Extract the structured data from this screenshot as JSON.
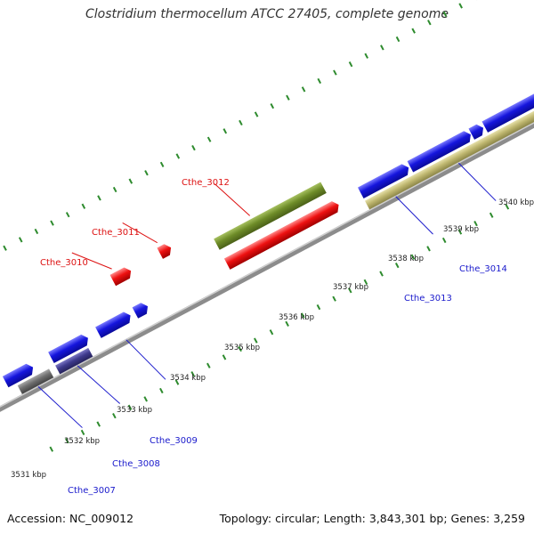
{
  "title": "Clostridium thermocellum ATCC 27405, complete genome",
  "footer": {
    "accession": "Accession: NC_009012",
    "summary": "Topology: circular; Length: 3,843,301 bp; Genes: 3,259"
  },
  "colors": {
    "background": "#ffffff",
    "backbone": "#8c8c8c",
    "tick_green": "#2e8b2e",
    "gene_label_red": "#dd1111",
    "gene_label_blue": "#1a1acc",
    "gene_blue": "#1515dd",
    "gene_red": "#ee1111",
    "gene_olive": "#6e8c28",
    "gene_khaki": "#bfb770",
    "gene_gray": "#6e6e6e",
    "gene_slate": "#3e3a8c"
  },
  "kbp_labels": [
    "3531 kbp",
    "3532 kbp",
    "3533 kbp",
    "3534 kbp",
    "3535 kbp",
    "3536 kbp",
    "3537 kbp",
    "3538 kbp",
    "3539 kbp",
    "3540 kbp"
  ],
  "gene_labels": [
    {
      "text": "Cthe_3010",
      "color": "red"
    },
    {
      "text": "Cthe_3011",
      "color": "red"
    },
    {
      "text": "Cthe_3012",
      "color": "red"
    },
    {
      "text": "Cthe_3007",
      "color": "blue"
    },
    {
      "text": "Cthe_3008",
      "color": "blue"
    },
    {
      "text": "Cthe_3009",
      "color": "blue"
    },
    {
      "text": "Cthe_3013",
      "color": "blue"
    },
    {
      "text": "Cthe_3014",
      "color": "blue"
    }
  ]
}
